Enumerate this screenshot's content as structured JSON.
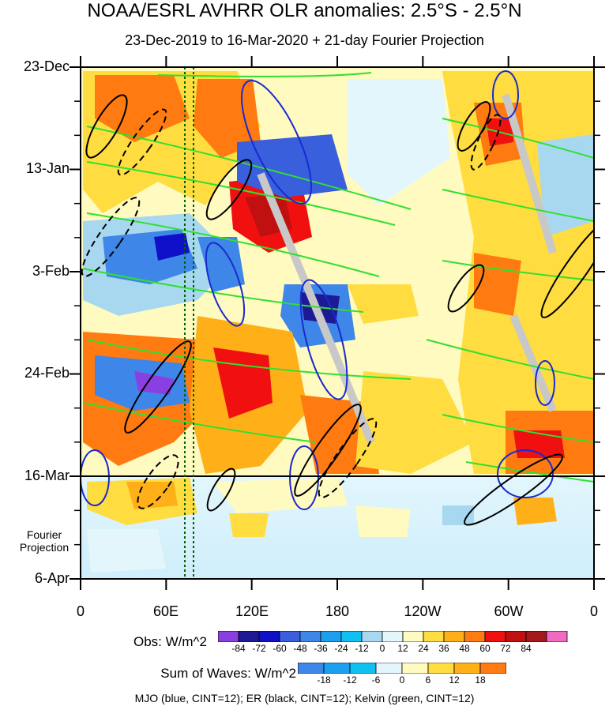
{
  "chart_data": {
    "type": "heatmap",
    "title": "NOAA/ESRL AVHRR OLR anomalies: 2.5°S - 2.5°N",
    "subtitle": "23-Dec-2019 to 16-Mar-2020 + 21-day Fourier Projection",
    "xlabel": "",
    "ylabel": "",
    "x_ticks": [
      "0",
      "60E",
      "120E",
      "180",
      "120W",
      "60W",
      "0"
    ],
    "y_ticks": [
      "23-Dec",
      "13-Jan",
      "3-Feb",
      "24-Feb",
      "16-Mar",
      "6-Apr"
    ],
    "y_extra_label": "Fourier Projection",
    "obs_colorbar": {
      "title": "Obs: W/m^2",
      "levels": [
        "-84",
        "-72",
        "-60",
        "-48",
        "-36",
        "-24",
        "-12",
        "0",
        "12",
        "24",
        "36",
        "48",
        "60",
        "72",
        "84"
      ],
      "colors": [
        "#8a3fe0",
        "#1d1a94",
        "#1010c8",
        "#3a5fdc",
        "#3e86e8",
        "#1aa0ee",
        "#10c0f0",
        "#a8d8f0",
        "#e2f6fc",
        "#fffac0",
        "#ffdc40",
        "#ffb018",
        "#ff7a10",
        "#f01010",
        "#c01010",
        "#a41a1a",
        "#ef6ac0"
      ]
    },
    "waves_colorbar": {
      "title": "Sum of Waves: W/m^2",
      "levels": [
        "-18",
        "-12",
        "-6",
        "0",
        "6",
        "12",
        "18"
      ],
      "colors": [
        "#3e86e8",
        "#1aa0ee",
        "#10c0f0",
        "#e2f6fc",
        "#fffac0",
        "#ffdc40",
        "#ffb018",
        "#ff7a10"
      ]
    },
    "overlays": "MJO (blue, CINT=12); ER (black, CINT=12); Kelvin (green, CINT=12)"
  }
}
